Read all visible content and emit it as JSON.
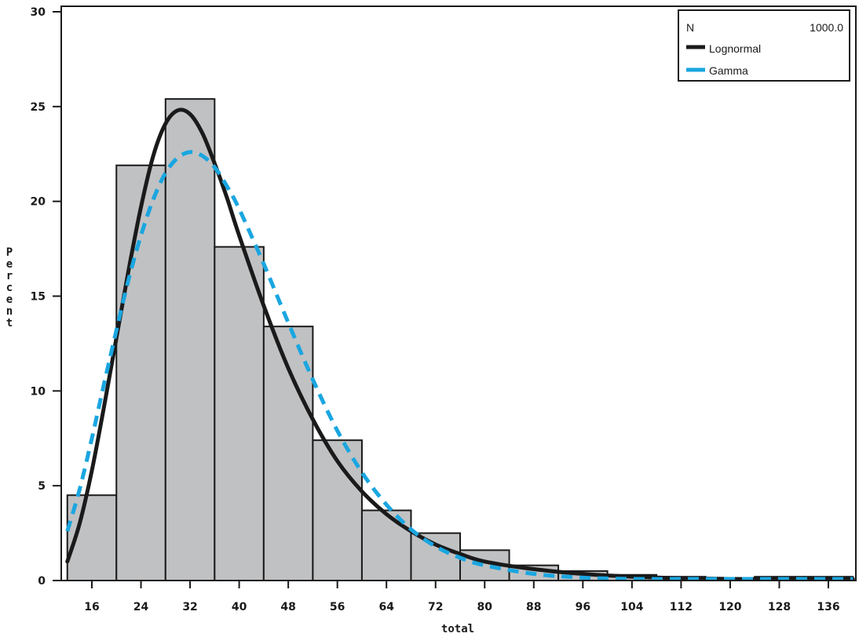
{
  "chart_data": {
    "type": "bar",
    "subtype": "histogram-with-fitted-curves",
    "title": "",
    "xlabel": "total",
    "ylabel": "Percent",
    "xlim": [
      12,
      140
    ],
    "ylim": [
      0,
      30
    ],
    "x_ticks": [
      16,
      24,
      32,
      40,
      48,
      56,
      64,
      72,
      80,
      88,
      96,
      104,
      112,
      120,
      128,
      136
    ],
    "y_ticks": [
      0,
      5,
      10,
      15,
      20,
      25,
      30
    ],
    "bin_width": 8,
    "bins": [
      {
        "start": 12,
        "end": 20,
        "percent": 4.5
      },
      {
        "start": 20,
        "end": 28,
        "percent": 21.9
      },
      {
        "start": 28,
        "end": 36,
        "percent": 25.4
      },
      {
        "start": 36,
        "end": 44,
        "percent": 17.6
      },
      {
        "start": 44,
        "end": 52,
        "percent": 13.4
      },
      {
        "start": 52,
        "end": 60,
        "percent": 7.4
      },
      {
        "start": 60,
        "end": 68,
        "percent": 3.7
      },
      {
        "start": 68,
        "end": 76,
        "percent": 2.5
      },
      {
        "start": 76,
        "end": 84,
        "percent": 1.6
      },
      {
        "start": 84,
        "end": 92,
        "percent": 0.8
      },
      {
        "start": 92,
        "end": 100,
        "percent": 0.5
      },
      {
        "start": 100,
        "end": 108,
        "percent": 0.3
      },
      {
        "start": 108,
        "end": 116,
        "percent": 0.2
      },
      {
        "start": 116,
        "end": 124,
        "percent": 0.1
      },
      {
        "start": 124,
        "end": 132,
        "percent": 0.2
      },
      {
        "start": 132,
        "end": 140,
        "percent": 0.2
      }
    ],
    "series": [
      {
        "name": "Lognormal",
        "style": "solid",
        "color": "#1a1a1a",
        "x": [
          12,
          14,
          16,
          18,
          20,
          22,
          24,
          26,
          28,
          30,
          32,
          34,
          36,
          38,
          40,
          44,
          48,
          52,
          56,
          60,
          64,
          68,
          72,
          76,
          80,
          88,
          96,
          104,
          112,
          120,
          128,
          140
        ],
        "y": [
          1.0,
          3.0,
          5.8,
          9.2,
          12.8,
          16.4,
          19.7,
          22.4,
          24.1,
          24.8,
          24.6,
          23.6,
          22.0,
          20.2,
          18.2,
          14.5,
          11.2,
          8.5,
          6.3,
          4.7,
          3.5,
          2.6,
          1.9,
          1.4,
          1.0,
          0.6,
          0.35,
          0.2,
          0.12,
          0.08,
          0.05,
          0.02
        ]
      },
      {
        "name": "Gamma",
        "style": "dashed",
        "color": "#1aa6e0",
        "x": [
          12,
          14,
          16,
          18,
          20,
          22,
          24,
          26,
          28,
          30,
          32,
          34,
          36,
          38,
          40,
          44,
          48,
          52,
          56,
          60,
          64,
          68,
          72,
          76,
          80,
          88,
          96,
          104,
          112,
          120,
          128,
          140
        ],
        "y": [
          2.6,
          4.8,
          7.5,
          10.4,
          13.2,
          15.9,
          18.2,
          20.1,
          21.5,
          22.3,
          22.6,
          22.4,
          21.8,
          20.8,
          19.6,
          16.7,
          13.6,
          10.6,
          7.9,
          5.7,
          4.0,
          2.7,
          1.8,
          1.2,
          0.8,
          0.35,
          0.15,
          0.07,
          0.03,
          0.01,
          0.0,
          0.0
        ]
      }
    ],
    "legend": {
      "position": "top-right",
      "n_label": "N",
      "n_value": "1000.0",
      "entries": [
        "Lognormal",
        "Gamma"
      ]
    },
    "grid": false,
    "bar_color": "#c0c1c3",
    "bar_edge_color": "#1a1a1a"
  }
}
